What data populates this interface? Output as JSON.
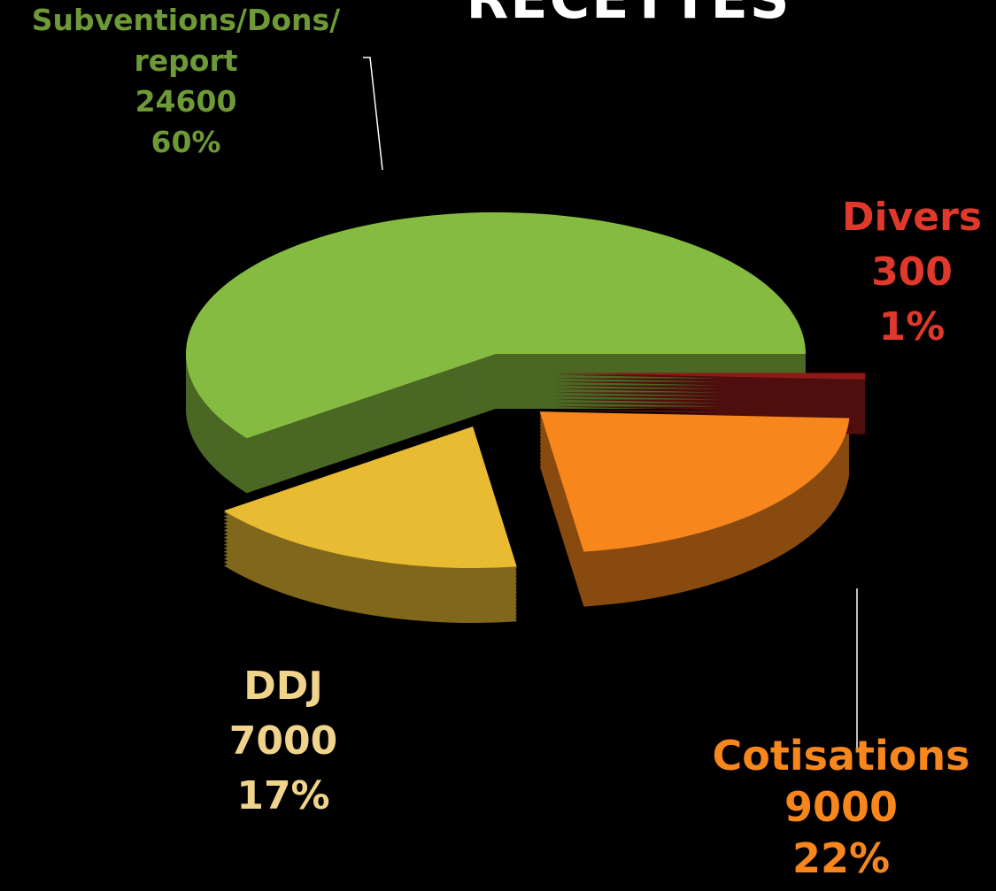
{
  "chart_data": {
    "type": "pie",
    "title": "RECETTES",
    "categories": [
      "Subventions/Dons/ report",
      "DDJ",
      "Cotisations",
      "Divers"
    ],
    "values": [
      24600,
      7000,
      9000,
      300
    ],
    "value_labels": [
      "60%",
      "17%",
      "22%",
      "1%"
    ],
    "colors": [
      "#86bb42",
      "#e8bb32",
      "#f7861c",
      "#8e1a18"
    ],
    "label_colors": [
      "#6d9a37",
      "#f0d48c",
      "#f7861c",
      "#e0392b"
    ]
  }
}
